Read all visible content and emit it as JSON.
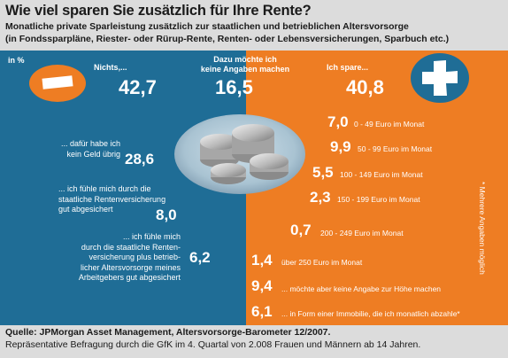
{
  "title": "Wie viel sparen Sie zusätzlich für Ihre Rente?",
  "subtitle_line1": "Monatliche private Sparleistung zusätzlich zur staatlichen und betrieblichen Altersvorsorge",
  "subtitle_line2": "(in Fondssparpläne, Riester- oder Rürup-Rente, Renten- oder Lebensversicherungen, Sparbuch etc.)",
  "unit_label": "in %",
  "side_note": "* Mehrere Angaben möglich",
  "source_line1": "Quelle: JPMorgan Asset Management, Altersvorsorge-Barometer 12/2007.",
  "source_line2": "Repräsentative Befragung durch die GfK im 4. Quartal von 2.008 Frauen und Männern ab 14 Jahren.",
  "colors": {
    "blue": "#1f6d96",
    "orange": "#ee7d23",
    "background": "#dcdcdc"
  },
  "icons": {
    "minus": "minus-icon",
    "plus": "plus-icon",
    "coins": "coins-icon"
  },
  "chart_data": {
    "type": "table",
    "unit": "in %",
    "top_groups": [
      {
        "label": "Nichts,...",
        "value": "42,7"
      },
      {
        "label_line1": "Dazu möchte ich",
        "label_line2": "keine Angaben machen",
        "value": "16,5"
      },
      {
        "label": "Ich spare...",
        "value": "40,8"
      }
    ],
    "nothing_reasons": [
      {
        "lines": [
          "... dafür habe ich",
          "kein Geld übrig"
        ],
        "value": "28,6"
      },
      {
        "lines": [
          "... ich fühle mich durch die",
          "staatliche Rentenversicherung",
          "gut abgesichert"
        ],
        "value": "8,0"
      },
      {
        "lines": [
          "... ich fühle mich",
          "durch die staatliche Renten-",
          "versicherung plus betrieb-",
          "licher Altersvorsorge meines",
          "Arbeitgebers gut abgesichert"
        ],
        "value": "6,2"
      }
    ],
    "saving_amounts": [
      {
        "value": "7,0",
        "label": "0 - 49 Euro im Monat"
      },
      {
        "value": "9,9",
        "label": "50 - 99 Euro im Monat"
      },
      {
        "value": "5,5",
        "label": "100 - 149 Euro im Monat"
      },
      {
        "value": "2,3",
        "label": "150 - 199 Euro im Monat"
      },
      {
        "value": "0,7",
        "label": "200 - 249 Euro im Monat"
      },
      {
        "value": "1,4",
        "label": "über 250 Euro im Monat"
      },
      {
        "value": "9,4",
        "label": "... möchte aber keine Angabe zur Höhe machen"
      },
      {
        "value": "6,1",
        "label": "... in Form einer Immobilie, die ich monatlich abzahle*"
      }
    ]
  }
}
